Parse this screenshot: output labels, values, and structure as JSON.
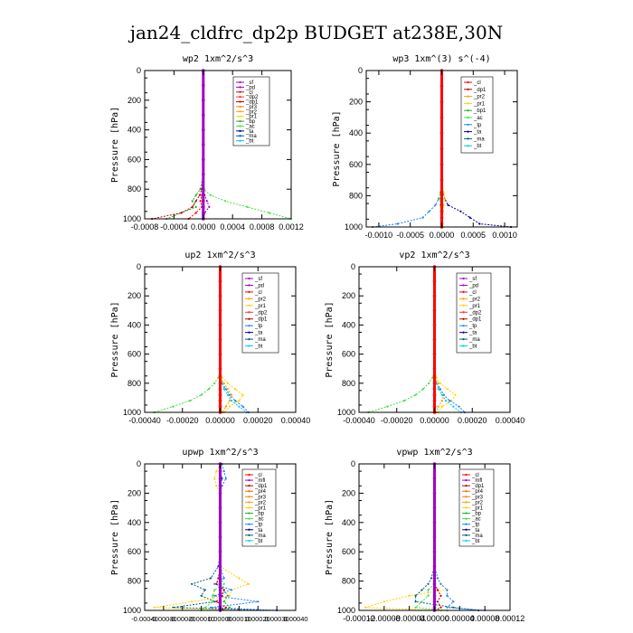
{
  "figure": {
    "title": "jan24_cldfrc_dp2p  BUDGET at238E,30N"
  },
  "colors": {
    "sf": "#a000c8",
    "pd": "#a000c8",
    "mfl": "#a000c8",
    "cl": "#ff0000",
    "dp1": "#c00000",
    "dp2": "#ff3030",
    "pr1": "#ffd000",
    "pr2": "#ffa000",
    "pr3": "#ff8000",
    "pr4": "#ff6000",
    "bp": "#20b020",
    "bp1": "#20b020",
    "ac": "#40e040",
    "tp": "#2080ff",
    "ta": "#000090",
    "ma": "#006080",
    "bt": "#00d0e0"
  },
  "chart_data": [
    {
      "type": "line",
      "title": "wp2  1xm^2/s^3",
      "ylabel": "Pressure [hPa]",
      "ylim": [
        1000,
        0
      ],
      "xlim": [
        -0.0008,
        0.0012
      ],
      "xticks": [
        -0.0008,
        -0.0004,
        0,
        0.0004,
        0.0008,
        0.0012
      ],
      "xtick_labels": [
        "-0.0008",
        "-0.0004",
        "0.0000",
        "0.0004",
        "0.0008",
        "0.0012"
      ],
      "yticks": [
        0,
        200,
        400,
        600,
        800,
        1000
      ],
      "legend": [
        "_sf",
        "_pd",
        "_cl",
        "_dp2",
        "_dp1",
        "_pr3",
        "_pr2",
        "_pr1",
        "_bp",
        "_ac",
        "_ta",
        "_ma",
        "_bt"
      ],
      "y": [
        0,
        100,
        200,
        300,
        400,
        500,
        600,
        700,
        800,
        840,
        880,
        920,
        960,
        1000
      ],
      "series": [
        {
          "name": "_ac",
          "key": "ac",
          "values": [
            0,
            0,
            0,
            0,
            0,
            0,
            0,
            0,
            0,
            0.0001,
            0.0003,
            0.0006,
            0.0009,
            0.0012
          ]
        },
        {
          "name": "_bp",
          "key": "bp",
          "values": [
            0,
            0,
            0,
            0,
            0,
            0,
            0,
            0,
            -4e-05,
            -0.0001,
            -0.00015,
            -0.0001,
            -0.0003,
            -0.0005
          ]
        },
        {
          "name": "_pd",
          "key": "pd",
          "values": [
            0,
            0,
            0,
            0,
            0,
            0,
            0,
            0,
            0,
            2e-05,
            5e-05,
            8e-05,
            2e-05,
            0
          ]
        },
        {
          "name": "_dp1",
          "key": "dp1",
          "values": [
            0,
            0,
            0,
            0,
            0,
            0,
            0,
            0,
            -2e-05,
            -5e-05,
            -0.0001,
            -0.00015,
            -0.0003,
            -0.0007
          ]
        },
        {
          "name": "_cl",
          "key": "cl",
          "values": [
            0,
            0,
            0,
            0,
            0,
            0,
            0,
            0,
            0,
            -2e-05,
            -4e-05,
            -2e-05,
            -0.0001,
            -0.0002
          ]
        },
        {
          "name": "_sf",
          "key": "sf",
          "values": [
            0,
            0,
            0,
            0,
            0,
            0,
            0,
            0,
            0,
            0,
            0,
            0,
            0,
            0
          ],
          "thick": true
        }
      ]
    },
    {
      "type": "line",
      "title": "wp3  1xm^(3) s^(-4)",
      "ylabel": "Pressure [hPa]",
      "ylim": [
        1000,
        0
      ],
      "xlim": [
        -0.0012,
        0.0012
      ],
      "xticks": [
        -0.001,
        -0.0005,
        0,
        0.0005,
        0.001
      ],
      "xtick_labels": [
        "-0.0010",
        "-0.0005",
        "0.0000",
        "0.0005",
        "0.0010"
      ],
      "yticks": [
        0,
        200,
        400,
        600,
        800,
        1000
      ],
      "legend": [
        "_cl",
        "_dp1",
        "_pr2",
        "_pr1",
        "_bp1",
        "_ac",
        "_tp",
        "_ta",
        "_ma",
        "_bt"
      ],
      "y": [
        0,
        100,
        200,
        300,
        400,
        500,
        600,
        700,
        780,
        820,
        860,
        900,
        940,
        980,
        1000
      ],
      "series": [
        {
          "name": "_ta",
          "key": "ta",
          "values": [
            0,
            0,
            0,
            0,
            0,
            0,
            0,
            0,
            2e-05,
            5e-05,
            0.0001,
            0.0003,
            0.00045,
            0.0006,
            0.0011
          ]
        },
        {
          "name": "_tp",
          "key": "tp",
          "values": [
            0,
            0,
            0,
            0,
            0,
            0,
            0,
            0,
            -2e-05,
            -5e-05,
            -0.0001,
            -0.0002,
            -0.0003,
            -0.0007,
            -0.0011
          ]
        },
        {
          "name": "_pr1",
          "key": "pr1",
          "values": [
            0,
            0,
            0,
            0,
            0,
            0,
            0,
            0,
            3e-05,
            5e-05,
            3e-05,
            2e-05,
            1e-05,
            0,
            0
          ]
        },
        {
          "name": "_ac",
          "key": "ac",
          "values": [
            0,
            0,
            0,
            0,
            0,
            0,
            0,
            0,
            -2e-05,
            -4e-05,
            -2e-05,
            -1e-05,
            0,
            0,
            0
          ]
        },
        {
          "name": "_cl",
          "key": "cl",
          "values": [
            0,
            0,
            0,
            0,
            0,
            0,
            0,
            0,
            0,
            0,
            0,
            0,
            0,
            0,
            0
          ],
          "thick": true
        }
      ]
    },
    {
      "type": "line",
      "title": "up2  1xm^2/s^3",
      "ylabel": "Pressure [hPa]",
      "ylim": [
        1000,
        0
      ],
      "xlim": [
        -0.0004,
        0.0004
      ],
      "xticks": [
        -0.0004,
        -0.0002,
        0,
        0.0002,
        0.0004
      ],
      "xtick_labels": [
        "-0.00040",
        "-0.00020",
        "0.00000",
        "0.00020",
        "0.00040"
      ],
      "yticks": [
        0,
        200,
        400,
        600,
        800,
        1000
      ],
      "legend": [
        "_sf",
        "_pd",
        "_cl",
        "_pr2",
        "_pr1",
        "_dp2",
        "_dp1",
        "_tp",
        "_ta",
        "_ma",
        "_bt"
      ],
      "y": [
        0,
        100,
        200,
        300,
        400,
        500,
        600,
        700,
        760,
        800,
        840,
        880,
        920,
        960,
        1000
      ],
      "series": [
        {
          "name": "_dp1",
          "key": "ac",
          "values": [
            0,
            0,
            0,
            0,
            0,
            0,
            0,
            0,
            -1e-05,
            -3e-05,
            -6e-05,
            -0.0001,
            -0.00016,
            -0.00025,
            -0.00035
          ]
        },
        {
          "name": "_pr1",
          "key": "pr1",
          "values": [
            0,
            0,
            0,
            0,
            0,
            0,
            0,
            0,
            1e-05,
            4e-05,
            8e-05,
            0.00012,
            0.0001,
            5e-05,
            2e-05
          ]
        },
        {
          "name": "_pr2",
          "key": "pr2",
          "values": [
            0,
            0,
            0,
            0,
            0,
            0,
            0,
            0,
            0,
            2e-05,
            4e-05,
            6e-05,
            5e-05,
            3e-05,
            1e-05
          ]
        },
        {
          "name": "_ta",
          "key": "tp",
          "values": [
            0,
            0,
            0,
            0,
            0,
            0,
            0,
            0,
            0,
            1e-05,
            3e-05,
            5e-05,
            8e-05,
            0.00012,
            0.00015
          ]
        },
        {
          "name": "_bt",
          "key": "bt",
          "values": [
            0,
            0,
            0,
            0,
            0,
            0,
            0,
            0,
            0,
            1e-05,
            2e-05,
            4e-05,
            6e-05,
            0.0001,
            0.00014
          ]
        },
        {
          "name": "_cl",
          "key": "cl",
          "values": [
            0,
            0,
            0,
            0,
            0,
            0,
            0,
            0,
            0,
            0,
            0,
            0,
            0,
            0,
            0
          ],
          "thick": true
        }
      ]
    },
    {
      "type": "line",
      "title": "vp2  1xm^2/s^3",
      "ylabel": "Pressure [hPa]",
      "ylim": [
        1000,
        0
      ],
      "xlim": [
        -0.0004,
        0.0004
      ],
      "xticks": [
        -0.0004,
        -0.0002,
        0,
        0.0002,
        0.0004
      ],
      "xtick_labels": [
        "-0.00040",
        "-0.00020",
        "0.00000",
        "0.00020",
        "0.00040"
      ],
      "yticks": [
        0,
        200,
        400,
        600,
        800,
        1000
      ],
      "legend": [
        "_sf",
        "_pd",
        "_cl",
        "_pr2",
        "_pr1",
        "_dp2",
        "_dp1",
        "_tp",
        "_ta",
        "_ma",
        "_bt"
      ],
      "y": [
        0,
        100,
        200,
        300,
        400,
        500,
        600,
        700,
        760,
        800,
        840,
        880,
        920,
        960,
        1000
      ],
      "series": [
        {
          "name": "_dp1",
          "key": "ac",
          "values": [
            0,
            0,
            0,
            0,
            0,
            0,
            0,
            0,
            -1e-05,
            -3e-05,
            -6e-05,
            -0.0001,
            -0.00016,
            -0.00025,
            -0.00035
          ]
        },
        {
          "name": "_pr1",
          "key": "pr1",
          "values": [
            0,
            0,
            0,
            0,
            0,
            0,
            0,
            0,
            1e-05,
            3e-05,
            7e-05,
            0.00011,
            9e-05,
            4e-05,
            2e-05
          ]
        },
        {
          "name": "_pr2",
          "key": "pr2",
          "values": [
            0,
            0,
            0,
            0,
            0,
            0,
            0,
            0,
            0,
            2e-05,
            3e-05,
            5e-05,
            4e-05,
            2e-05,
            1e-05
          ]
        },
        {
          "name": "_ta",
          "key": "tp",
          "values": [
            0,
            0,
            0,
            0,
            0,
            0,
            0,
            0,
            0,
            1e-05,
            3e-05,
            5e-05,
            8e-05,
            0.00013,
            0.00016
          ]
        },
        {
          "name": "_bt",
          "key": "bt",
          "values": [
            0,
            0,
            0,
            0,
            0,
            0,
            0,
            0,
            0,
            1e-05,
            2e-05,
            4e-05,
            6e-05,
            0.0001,
            0.00014
          ]
        },
        {
          "name": "_cl",
          "key": "cl",
          "values": [
            0,
            0,
            0,
            0,
            0,
            0,
            0,
            0,
            0,
            0,
            0,
            0,
            0,
            0,
            0
          ],
          "thick": true
        }
      ]
    },
    {
      "type": "line",
      "title": "upwp  1xm^2/s^3",
      "ylabel": "Pressure [hPa]",
      "ylim": [
        1000,
        0
      ],
      "xlim": [
        -0.0004,
        0.0004
      ],
      "xticks": [
        -0.0004,
        -0.0003,
        -0.0002,
        -0.0001,
        0,
        0.0001,
        0.0002,
        0.0003,
        0.0004
      ],
      "xtick_labels": [
        "-0.00040",
        "-0.00030",
        "-0.00020",
        "-0.00010",
        "0.00000",
        "0.00010",
        "0.00020",
        "0.00030",
        "0.00040"
      ],
      "yticks": [
        0,
        200,
        400,
        600,
        800,
        1000
      ],
      "legend": [
        "_cl",
        "_mfl",
        "_dp1",
        "_pr4",
        "_pr3",
        "_pr2",
        "_pr1",
        "_bp",
        "_ac",
        "_tp",
        "_ta",
        "_ma",
        "_bt"
      ],
      "y": [
        0,
        50,
        100,
        150,
        200,
        300,
        400,
        500,
        600,
        700,
        780,
        820,
        860,
        900,
        940,
        980,
        1000
      ],
      "series": [
        {
          "name": "_ma",
          "key": "ma",
          "values": [
            0,
            0,
            1e-05,
            0,
            0,
            0,
            0,
            0,
            0,
            -1e-05,
            -5e-05,
            -0.00015,
            -8e-05,
            -0.0001,
            -3e-05,
            -0.00025,
            0.0003
          ]
        },
        {
          "name": "_pr1",
          "key": "pr1",
          "values": [
            0,
            -2e-05,
            -3e-05,
            -2e-05,
            0,
            0,
            0,
            0,
            0,
            0,
            0.0001,
            0.00015,
            6e-05,
            5e-05,
            -0.00015,
            -0.00035,
            0.0001
          ]
        },
        {
          "name": "_tp",
          "key": "tp",
          "values": [
            1e-05,
            2e-05,
            3e-05,
            1e-05,
            0,
            0,
            0,
            0,
            0,
            0,
            2e-05,
            -3e-05,
            6e-05,
            -3e-05,
            0.0002,
            -5e-05,
            0.0003
          ]
        },
        {
          "name": "_ac",
          "key": "ac",
          "values": [
            0,
            0,
            0,
            0,
            0,
            0,
            0,
            0,
            0,
            0,
            0,
            2e-05,
            -3e-05,
            -4e-05,
            -4e-05,
            -8e-05,
            -0.0001
          ]
        },
        {
          "name": "_bp",
          "key": "bp",
          "values": [
            0,
            0,
            0,
            0,
            0,
            0,
            0,
            0,
            0,
            0,
            0,
            0,
            2e-05,
            4e-05,
            2e-05,
            5e-05,
            0
          ]
        },
        {
          "name": "_dp1",
          "key": "dp1",
          "values": [
            0,
            0,
            0,
            0,
            0,
            0,
            0,
            0,
            0,
            0,
            -1e-05,
            -2e-05,
            2e-05,
            1e-05,
            -2e-05,
            3e-05,
            0
          ]
        },
        {
          "name": "_mfl",
          "key": "mfl",
          "values": [
            0,
            0,
            0,
            0,
            0,
            0,
            0,
            0,
            0,
            0,
            0,
            0,
            0,
            0,
            0,
            0,
            0
          ],
          "thick": true
        }
      ]
    },
    {
      "type": "line",
      "title": "vpwp  1xm^2/s^3",
      "ylabel": "Pressure [hPa]",
      "ylim": [
        1000,
        0
      ],
      "xlim": [
        -0.00012,
        0.00012
      ],
      "xticks": [
        -0.00012,
        -8e-05,
        -4e-05,
        0,
        4e-05,
        8e-05,
        0.00012
      ],
      "xtick_labels": [
        "-0.00012",
        "-0.00008",
        "-0.00004",
        "0.00000",
        "0.00004",
        "0.00008",
        "0.00012"
      ],
      "yticks": [
        0,
        200,
        400,
        600,
        800,
        1000
      ],
      "legend": [
        "_cl",
        "_mfl",
        "_dp1",
        "_pr4",
        "_pr3",
        "_pr2",
        "_pr1",
        "_bp",
        "_ac",
        "_tp",
        "_ta",
        "_ma",
        "_bt"
      ],
      "y": [
        0,
        100,
        200,
        300,
        400,
        500,
        600,
        700,
        780,
        820,
        860,
        900,
        940,
        980,
        1000
      ],
      "series": [
        {
          "name": "_pr1",
          "key": "pr1",
          "values": [
            0,
            0,
            0,
            0,
            0,
            0,
            0,
            0,
            5e-06,
            1e-05,
            2e-05,
            -4e-05,
            -8e-05,
            -0.00011,
            1e-05
          ]
        },
        {
          "name": "_ma",
          "key": "ma",
          "values": [
            0,
            0,
            0,
            0,
            0,
            0,
            0,
            0,
            -5e-06,
            -1e-05,
            -2e-05,
            -3e-05,
            -3e-05,
            3e-05,
            7e-05
          ]
        },
        {
          "name": "_tp",
          "key": "tp",
          "values": [
            0,
            0,
            0,
            0,
            0,
            0,
            0,
            0,
            5e-06,
            1e-05,
            2e-05,
            2e-05,
            3e-05,
            2e-05,
            8e-05
          ]
        },
        {
          "name": "_ac",
          "key": "ac",
          "values": [
            0,
            0,
            0,
            0,
            0,
            0,
            0,
            0,
            0,
            0,
            -1e-05,
            -1e-05,
            -2e-05,
            -3e-05,
            2e-05
          ]
        },
        {
          "name": "_dp1",
          "key": "dp1",
          "values": [
            0,
            0,
            0,
            0,
            0,
            0,
            0,
            0,
            0,
            0,
            5e-06,
            1e-05,
            5e-06,
            1e-05,
            0
          ]
        },
        {
          "name": "_mfl",
          "key": "mfl",
          "values": [
            0,
            0,
            0,
            0,
            0,
            0,
            0,
            0,
            0,
            0,
            0,
            0,
            0,
            0,
            0
          ],
          "thick": true
        }
      ]
    }
  ]
}
